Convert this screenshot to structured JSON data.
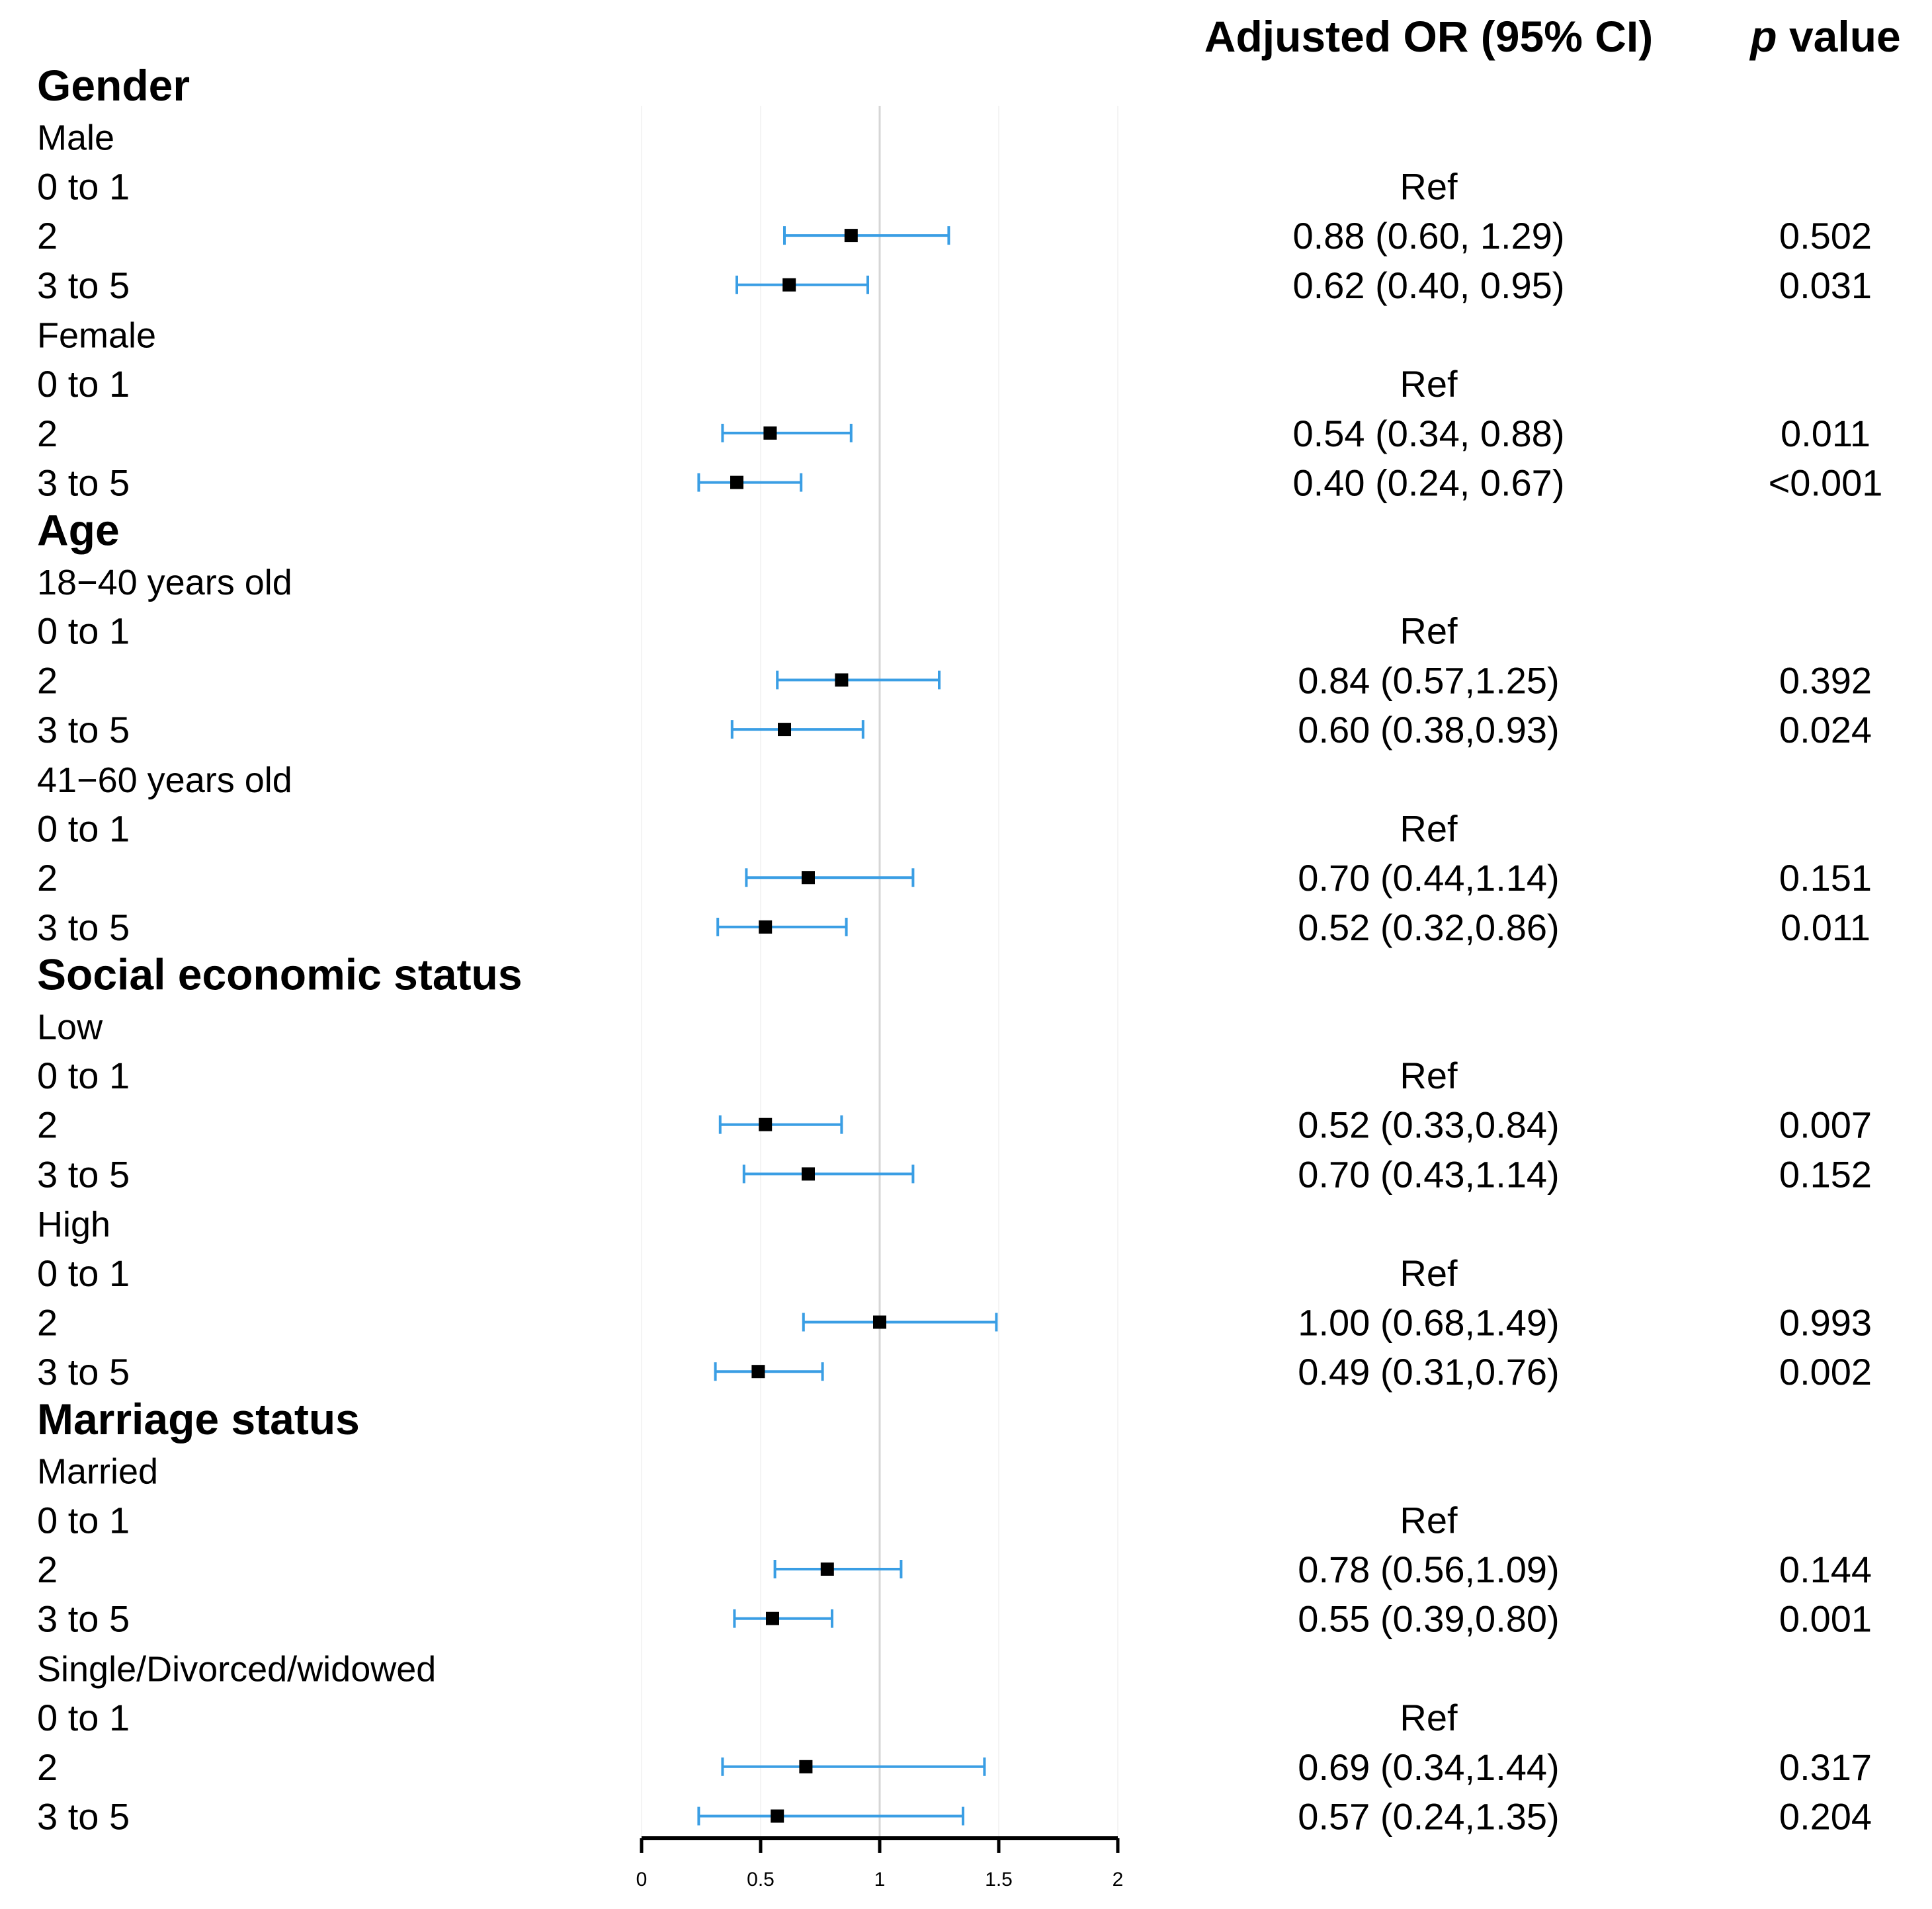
{
  "chart_data": {
    "type": "forest",
    "title": "",
    "column_headers": {
      "or": "Adjusted OR (95% CI)",
      "p_prefix": "p",
      "p_suffix": " value"
    },
    "xlim": [
      0,
      2
    ],
    "x_ticks": [
      0,
      0.5,
      1,
      1.5,
      2
    ],
    "x_tick_labels": [
      "0",
      "0.5",
      "1",
      "1.5",
      "2"
    ],
    "reference_line": 1,
    "ci_color": "#3a9ee4",
    "point_color": "#000000",
    "rows": [
      {
        "kind": "group",
        "label": "Gender"
      },
      {
        "kind": "subgroup",
        "label": "Male"
      },
      {
        "kind": "level",
        "label": "0 to 1",
        "or_text": "Ref",
        "p_text": ""
      },
      {
        "kind": "level",
        "label": "2",
        "or": 0.88,
        "lower": 0.6,
        "upper": 1.29,
        "or_text": "0.88 (0.60, 1.29)",
        "p_text": "0.502"
      },
      {
        "kind": "level",
        "label": "3 to 5",
        "or": 0.62,
        "lower": 0.4,
        "upper": 0.95,
        "or_text": "0.62 (0.40, 0.95)",
        "p_text": "0.031"
      },
      {
        "kind": "subgroup",
        "label": "Female"
      },
      {
        "kind": "level",
        "label": "0 to 1",
        "or_text": "Ref",
        "p_text": ""
      },
      {
        "kind": "level",
        "label": "2",
        "or": 0.54,
        "lower": 0.34,
        "upper": 0.88,
        "or_text": "0.54 (0.34, 0.88)",
        "p_text": "0.011"
      },
      {
        "kind": "level",
        "label": "3 to 5",
        "or": 0.4,
        "lower": 0.24,
        "upper": 0.67,
        "or_text": "0.40 (0.24, 0.67)",
        "p_text": "<0.001"
      },
      {
        "kind": "group",
        "label": "Age"
      },
      {
        "kind": "subgroup",
        "label": "18−40 years old"
      },
      {
        "kind": "level",
        "label": "0 to 1",
        "or_text": "Ref",
        "p_text": ""
      },
      {
        "kind": "level",
        "label": "2",
        "or": 0.84,
        "lower": 0.57,
        "upper": 1.25,
        "or_text": "0.84 (0.57,1.25)",
        "p_text": "0.392"
      },
      {
        "kind": "level",
        "label": "3 to 5",
        "or": 0.6,
        "lower": 0.38,
        "upper": 0.93,
        "or_text": "0.60 (0.38,0.93)",
        "p_text": "0.024"
      },
      {
        "kind": "subgroup",
        "label": "41−60 years old"
      },
      {
        "kind": "level",
        "label": "0 to 1",
        "or_text": "Ref",
        "p_text": ""
      },
      {
        "kind": "level",
        "label": "2",
        "or": 0.7,
        "lower": 0.44,
        "upper": 1.14,
        "or_text": "0.70 (0.44,1.14)",
        "p_text": "0.151"
      },
      {
        "kind": "level",
        "label": "3 to 5",
        "or": 0.52,
        "lower": 0.32,
        "upper": 0.86,
        "or_text": "0.52 (0.32,0.86)",
        "p_text": "0.011"
      },
      {
        "kind": "group",
        "label": "Social economic status"
      },
      {
        "kind": "subgroup",
        "label": "Low"
      },
      {
        "kind": "level",
        "label": "0 to 1",
        "or_text": "Ref",
        "p_text": ""
      },
      {
        "kind": "level",
        "label": "2",
        "or": 0.52,
        "lower": 0.33,
        "upper": 0.84,
        "or_text": "0.52 (0.33,0.84)",
        "p_text": "0.007"
      },
      {
        "kind": "level",
        "label": "3 to 5",
        "or": 0.7,
        "lower": 0.43,
        "upper": 1.14,
        "or_text": "0.70 (0.43,1.14)",
        "p_text": "0.152"
      },
      {
        "kind": "subgroup",
        "label": "High"
      },
      {
        "kind": "level",
        "label": "0 to 1",
        "or_text": "Ref",
        "p_text": ""
      },
      {
        "kind": "level",
        "label": "2",
        "or": 1.0,
        "lower": 0.68,
        "upper": 1.49,
        "or_text": "1.00 (0.68,1.49)",
        "p_text": "0.993"
      },
      {
        "kind": "level",
        "label": "3 to 5",
        "or": 0.49,
        "lower": 0.31,
        "upper": 0.76,
        "or_text": "0.49 (0.31,0.76)",
        "p_text": "0.002"
      },
      {
        "kind": "group",
        "label": "Marriage status"
      },
      {
        "kind": "subgroup",
        "label": "Married"
      },
      {
        "kind": "level",
        "label": "0 to 1",
        "or_text": "Ref",
        "p_text": ""
      },
      {
        "kind": "level",
        "label": "2",
        "or": 0.78,
        "lower": 0.56,
        "upper": 1.09,
        "or_text": "0.78 (0.56,1.09)",
        "p_text": "0.144"
      },
      {
        "kind": "level",
        "label": "3 to 5",
        "or": 0.55,
        "lower": 0.39,
        "upper": 0.8,
        "or_text": "0.55 (0.39,0.80)",
        "p_text": "0.001"
      },
      {
        "kind": "subgroup",
        "label": "Single/Divorced/widowed"
      },
      {
        "kind": "level",
        "label": "0 to 1",
        "or_text": "Ref",
        "p_text": ""
      },
      {
        "kind": "level",
        "label": "2",
        "or": 0.69,
        "lower": 0.34,
        "upper": 1.44,
        "or_text": "0.69 (0.34,1.44)",
        "p_text": "0.317"
      },
      {
        "kind": "level",
        "label": "3 to 5",
        "or": 0.57,
        "lower": 0.24,
        "upper": 1.35,
        "or_text": "0.57 (0.24,1.35)",
        "p_text": "0.204"
      }
    ]
  }
}
